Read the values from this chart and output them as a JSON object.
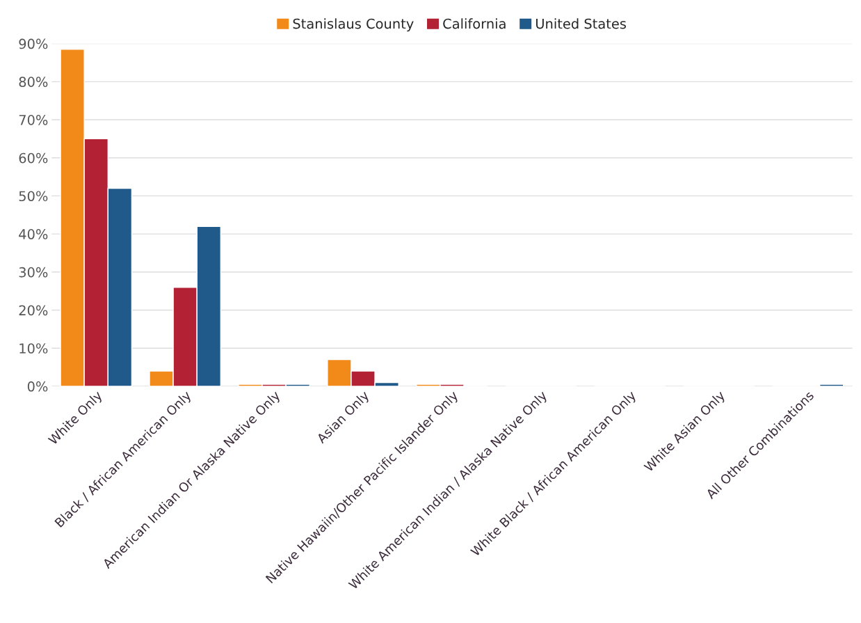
{
  "chart_data": {
    "type": "bar",
    "categories": [
      "White Only",
      "Black / African American Only",
      "American Indian Or Alaska Native Only",
      "Asian Only",
      "Native Hawaiin/Other Pacific Islander Only",
      "White American Indian / Alaska Native Only",
      "White Black / African American Only",
      "White Asian Only",
      "All Other Combinations"
    ],
    "series": [
      {
        "name": "Stanislaus County",
        "color": "#f28a1a",
        "values": [
          88.5,
          4,
          0.5,
          7,
          0.5,
          0,
          0,
          0,
          0
        ]
      },
      {
        "name": "California",
        "color": "#b22234",
        "values": [
          65,
          26,
          0.5,
          4,
          0.5,
          0,
          0,
          0,
          0
        ]
      },
      {
        "name": "United States",
        "color": "#1f5a8a",
        "values": [
          52,
          42,
          0.5,
          1,
          0,
          0,
          0,
          0,
          0.5
        ]
      }
    ],
    "ylim": [
      0,
      90
    ],
    "yticks": [
      {
        "value": 0,
        "label": "0%"
      },
      {
        "value": 10,
        "label": "10%"
      },
      {
        "value": 20,
        "label": "20%"
      },
      {
        "value": 30,
        "label": "30%"
      },
      {
        "value": 40,
        "label": "40%"
      },
      {
        "value": 50,
        "label": "50%"
      },
      {
        "value": 60,
        "label": "60%"
      },
      {
        "value": 70,
        "label": "70%"
      },
      {
        "value": 80,
        "label": "80%"
      },
      {
        "value": 90,
        "label": "90%"
      }
    ],
    "grid": "y",
    "legend": "top"
  }
}
